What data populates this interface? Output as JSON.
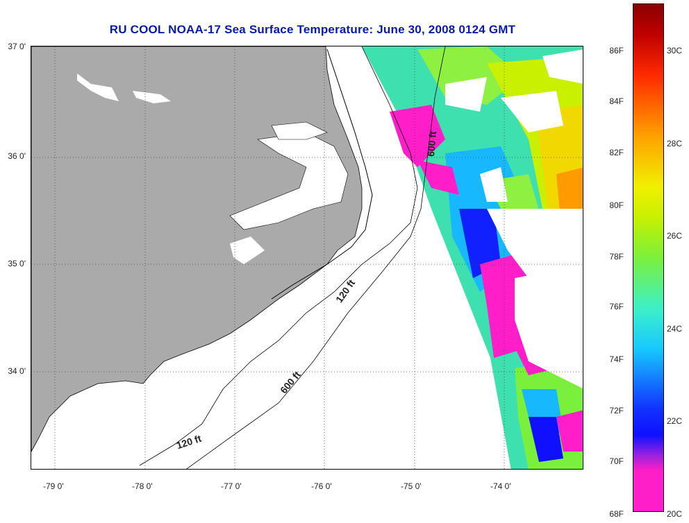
{
  "title": "RU COOL  NOAA-17  Sea Surface Temperature:  June 30, 2008 0124 GMT",
  "lat_labels": [
    "37 0'",
    "36 0'",
    "35 0'",
    "34 0'"
  ],
  "lon_labels": [
    "-79 0'",
    "-78 0'",
    "-77 0'",
    "-76 0'",
    "-75 0'",
    "-74 0'"
  ],
  "contours": {
    "c120_left": "120 ft",
    "c600_mid": "600 ft",
    "c120_mid": "120 ft",
    "c600_top": "600 ft"
  },
  "colorbar": {
    "f_labels": [
      "86F",
      "84F",
      "82F",
      "80F",
      "78F",
      "76F",
      "74F",
      "72F",
      "70F",
      "68F"
    ],
    "c_labels": [
      "30C",
      "28C",
      "26C",
      "24C",
      "22C",
      "20C"
    ],
    "colors": [
      "#ff1ec8",
      "#9a22e0",
      "#1010ff",
      "#18c8ff",
      "#3ef0c8",
      "#7bf03c",
      "#f0f000",
      "#ffa000",
      "#ff2a00",
      "#8a0000"
    ]
  }
}
